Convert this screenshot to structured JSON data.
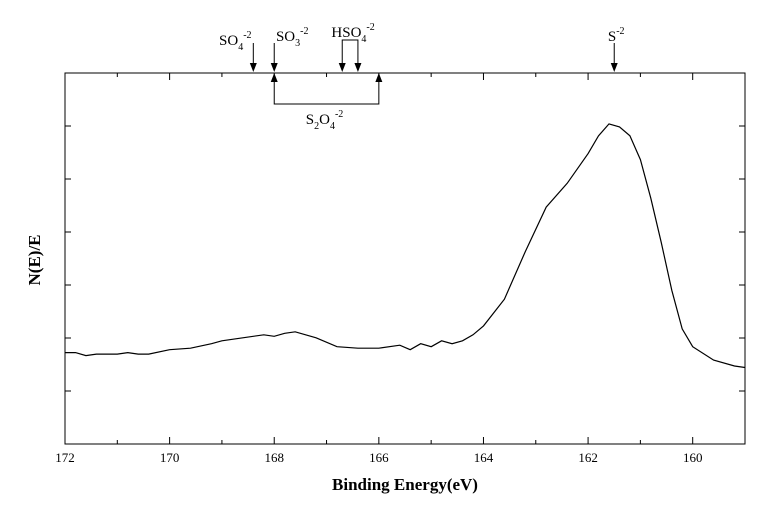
{
  "chart_data": {
    "type": "line",
    "xlabel": "Binding Energy(eV)",
    "ylabel": "N(E)/E",
    "xlim": [
      172,
      159
    ],
    "x_reversed": true,
    "ylim": [
      0,
      100
    ],
    "y_tick_labels_shown": false,
    "grid": false,
    "x_ticks": [
      172,
      170,
      168,
      166,
      164,
      162,
      160
    ],
    "series": [
      {
        "x": [
          172.0,
          171.8,
          171.6,
          171.4,
          171.0,
          170.8,
          170.6,
          170.4,
          170.0,
          169.6,
          169.2,
          169.0,
          168.6,
          168.2,
          168.0,
          167.8,
          167.6,
          167.2,
          166.8,
          166.4,
          166.0,
          165.6,
          165.4,
          165.2,
          165.0,
          164.8,
          164.6,
          164.4,
          164.2,
          164.0,
          163.6,
          163.2,
          162.8,
          162.4,
          162.0,
          161.8,
          161.6,
          161.4,
          161.2,
          161.0,
          160.8,
          160.6,
          160.4,
          160.2,
          160.0,
          159.6,
          159.2,
          159.0
        ],
        "y": [
          21.0,
          21.0,
          20.0,
          20.5,
          20.5,
          21.0,
          20.5,
          20.5,
          22.0,
          22.5,
          24.0,
          25.0,
          26.0,
          27.0,
          26.5,
          27.5,
          28.0,
          26.0,
          23.0,
          22.5,
          22.5,
          23.5,
          22.0,
          24.0,
          23.0,
          25.0,
          24.0,
          25.0,
          27.0,
          30.0,
          39.0,
          55.0,
          70.0,
          78.0,
          88.0,
          94.0,
          98.0,
          97.0,
          94.0,
          86.0,
          73.0,
          58.0,
          42.0,
          29.0,
          23.0,
          18.5,
          16.5,
          16.0
        ]
      }
    ],
    "annotations": [
      {
        "x": 168.4,
        "label": "SO",
        "sub": "4",
        "sup": "-2"
      },
      {
        "x": 168.0,
        "label": "SO",
        "sub": "3",
        "sup": "-2"
      },
      {
        "x": 166.7,
        "label": "HSO",
        "sub": "4",
        "sup": "-2"
      },
      {
        "x": 166.4,
        "label": ""
      },
      {
        "x": 161.5,
        "label": "S",
        "sub": "",
        "sup": "-2"
      }
    ],
    "bracket": {
      "x_start": 168.0,
      "x_end": 166.0,
      "label": "S",
      "sub1": "2",
      "mid": "O",
      "sub2": "4",
      "sup": "-2"
    }
  }
}
